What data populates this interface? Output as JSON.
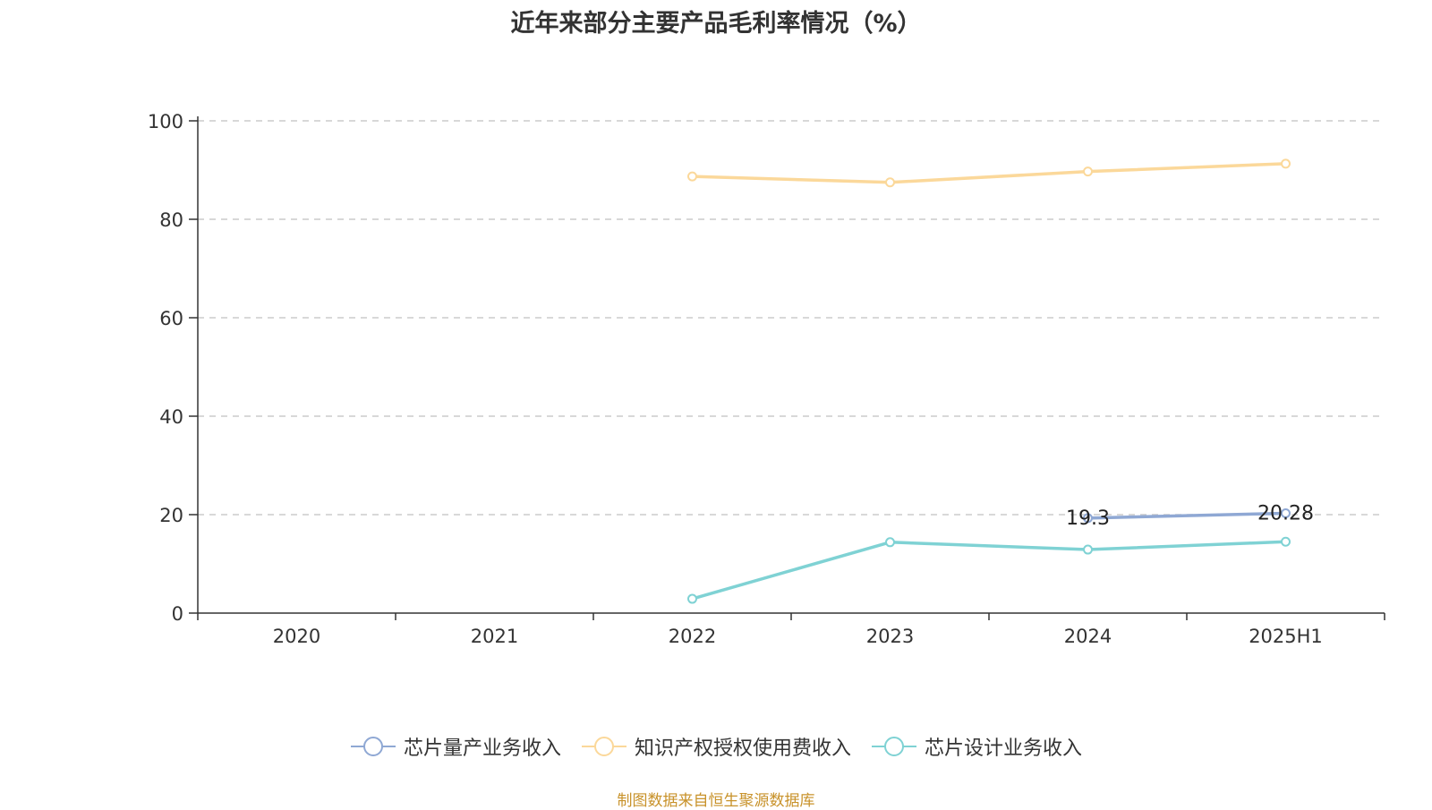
{
  "chart_data": {
    "type": "line",
    "title": "近年来部分主要产品毛利率情况（%）",
    "categories": [
      "2020",
      "2021",
      "2022",
      "2023",
      "2024",
      "2025H1"
    ],
    "ylim": [
      0,
      100
    ],
    "yticks": [
      0,
      20,
      40,
      60,
      80,
      100
    ],
    "grid": true,
    "legend_position": "bottom",
    "series": [
      {
        "name": "芯片量产业务收入",
        "color": "#8fa8d4",
        "values": [
          null,
          null,
          null,
          null,
          19.3,
          20.28
        ],
        "labels": [
          null,
          null,
          null,
          null,
          "19.3",
          "20.28"
        ]
      },
      {
        "name": "知识产权授权使用费收入",
        "color": "#fbd89a",
        "values": [
          null,
          null,
          88.7,
          87.5,
          89.7,
          91.3
        ],
        "labels": [
          null,
          null,
          null,
          null,
          null,
          null
        ]
      },
      {
        "name": "芯片设计业务收入",
        "color": "#7fd2d4",
        "values": [
          null,
          null,
          2.9,
          14.4,
          12.9,
          14.5
        ],
        "labels": [
          null,
          null,
          null,
          null,
          null,
          null
        ]
      }
    ]
  },
  "source": "制图数据来自恒生聚源数据库"
}
